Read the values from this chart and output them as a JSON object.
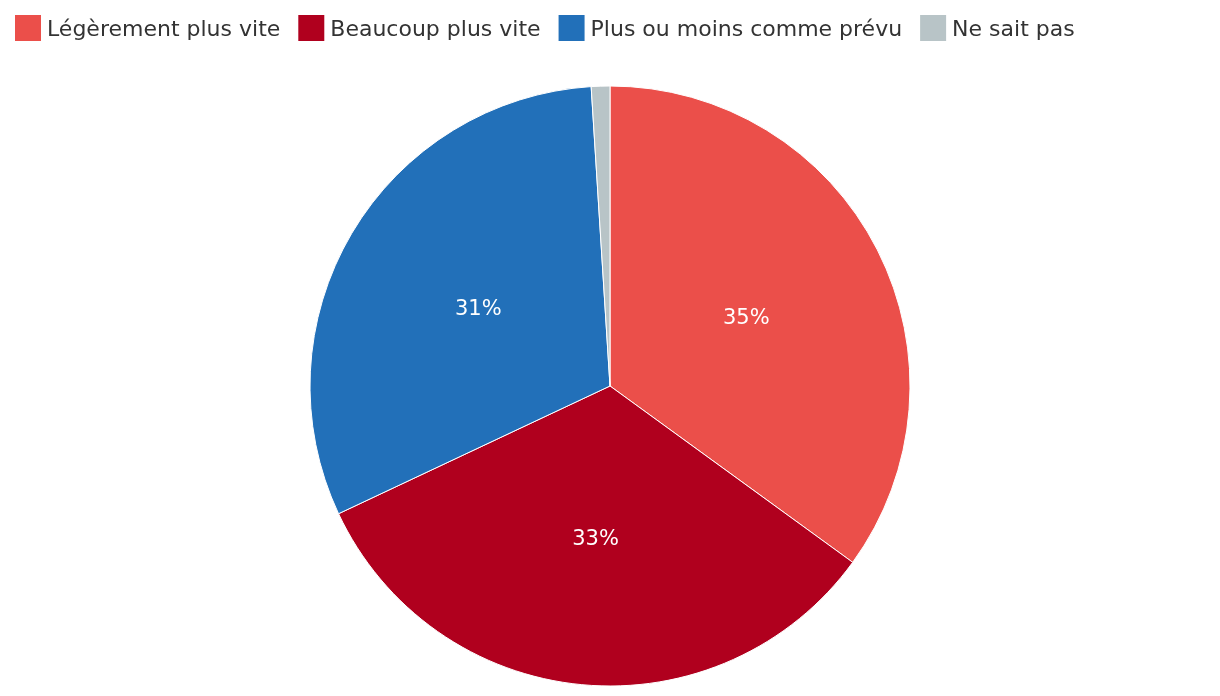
{
  "chart_data": {
    "type": "pie",
    "categories": [
      "Légèrement plus vite",
      "Beaucoup plus vite",
      "Plus ou moins comme prévu",
      "Ne sait pas"
    ],
    "values": [
      35,
      33,
      31,
      1
    ],
    "colors": [
      "#eb4f4a",
      "#b0001e",
      "#2270b9",
      "#b8c4c7"
    ],
    "value_labels": [
      "35%",
      "33%",
      "31%",
      null
    ],
    "legend": "top left"
  }
}
